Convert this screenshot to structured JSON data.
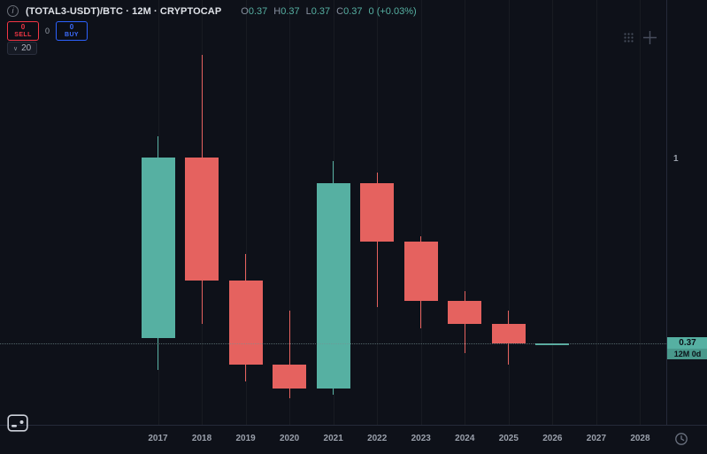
{
  "colors": {
    "background": "#0e1119",
    "up": "#56b0a2",
    "down": "#e5625f",
    "sell_red": "#f23645",
    "buy_blue": "#2d62ff",
    "axis_text": "#9aa0ab",
    "badge_text": "#0b1118"
  },
  "header": {
    "symbol": "(TOTAL3-USDT)/BTC · 12M · CRYPTOCAP",
    "ohlc": [
      {
        "label": "O",
        "value": "0.37"
      },
      {
        "label": "H",
        "value": "0.37"
      },
      {
        "label": "L",
        "value": "0.37"
      },
      {
        "label": "C",
        "value": "0.37"
      }
    ],
    "change": "0 (+0.03%)"
  },
  "trade_panel": {
    "sell_qty": "0",
    "sell_label": "SELL",
    "spread": "0",
    "buy_qty": "0",
    "buy_label": "BUY"
  },
  "toolbar": {
    "bars_value": "20",
    "chevron": "∨"
  },
  "icons": {
    "info": "i"
  },
  "price_axis": {
    "ticks": [
      {
        "value": "1"
      }
    ],
    "current_price": 0.37,
    "current_price_label": "0.37",
    "countdown": "12M 0d"
  },
  "chart_data": {
    "type": "candlestick",
    "title": "(TOTAL3-USDT)/BTC",
    "interval": "12M",
    "source": "CRYPTOCAP",
    "scale": "logarithmic",
    "x_categories": [
      "2017",
      "2018",
      "2019",
      "2020",
      "2021",
      "2022",
      "2023",
      "2024",
      "2025",
      "2026",
      "2027",
      "2028"
    ],
    "y_axis_ticks": [
      "1"
    ],
    "current_price": 0.37,
    "candles": [
      {
        "year": 2017,
        "open": 0.38,
        "high": 1.13,
        "low": 0.32,
        "close": 1.01,
        "direction": "up"
      },
      {
        "year": 2018,
        "open": 1.01,
        "high": 1.76,
        "low": 0.41,
        "close": 0.52,
        "direction": "down"
      },
      {
        "year": 2019,
        "open": 0.52,
        "high": 0.6,
        "low": 0.3,
        "close": 0.33,
        "direction": "down"
      },
      {
        "year": 2020,
        "open": 0.33,
        "high": 0.44,
        "low": 0.275,
        "close": 0.29,
        "direction": "down"
      },
      {
        "year": 2021,
        "open": 0.29,
        "high": 0.99,
        "low": 0.28,
        "close": 0.88,
        "direction": "up"
      },
      {
        "year": 2022,
        "open": 0.88,
        "high": 0.93,
        "low": 0.45,
        "close": 0.64,
        "direction": "down"
      },
      {
        "year": 2023,
        "open": 0.64,
        "high": 0.66,
        "low": 0.4,
        "close": 0.465,
        "direction": "down"
      },
      {
        "year": 2024,
        "open": 0.465,
        "high": 0.49,
        "low": 0.35,
        "close": 0.41,
        "direction": "down"
      },
      {
        "year": 2025,
        "open": 0.41,
        "high": 0.44,
        "low": 0.33,
        "close": 0.37,
        "direction": "down"
      },
      {
        "year": 2026,
        "open": 0.37,
        "high": 0.37,
        "low": 0.37,
        "close": 0.37,
        "direction": "flat"
      }
    ]
  }
}
